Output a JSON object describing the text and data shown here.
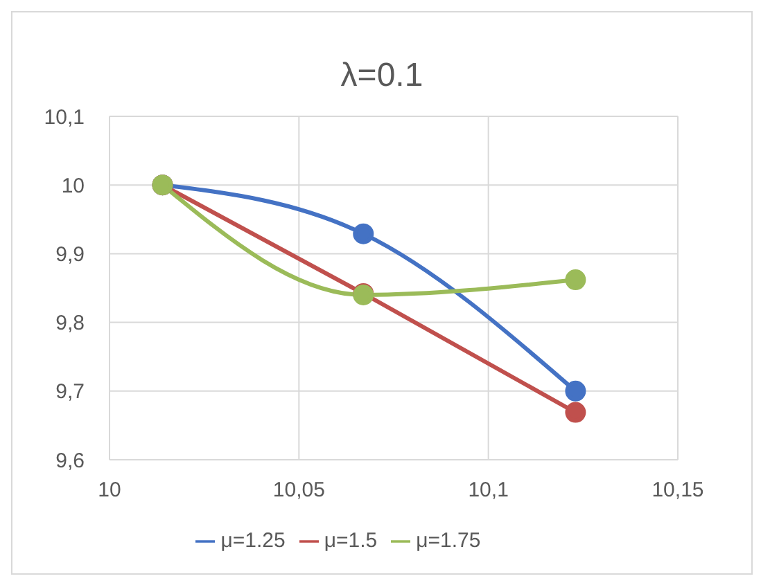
{
  "chart_data": {
    "type": "line",
    "title": "λ=0.1",
    "x": [
      10.014,
      10.067,
      10.123
    ],
    "series": [
      {
        "name": "μ=1.25",
        "color": "#4472c4",
        "values": [
          10.0,
          9.929,
          9.7
        ]
      },
      {
        "name": "μ=1.5",
        "color": "#c0504d",
        "values": [
          10.0,
          9.842,
          9.669
        ]
      },
      {
        "name": "μ=1.75",
        "color": "#9bbb59",
        "values": [
          10.0,
          9.84,
          9.862
        ]
      }
    ],
    "xlim": [
      10,
      10.15
    ],
    "xticks": [
      10,
      {
        "value": 10.05,
        "label": "10,05"
      },
      {
        "value": 10.1,
        "label": "10,1"
      },
      {
        "value": 10.15,
        "label": "10,15"
      }
    ],
    "ylim": [
      9.6,
      10.1
    ],
    "yticks": [
      {
        "value": 9.6,
        "label": "9,6"
      },
      {
        "value": 9.7,
        "label": "9,7"
      },
      {
        "value": 9.8,
        "label": "9,8"
      },
      {
        "value": 9.9,
        "label": "9,9"
      },
      10,
      {
        "value": 10.1,
        "label": "10,1"
      }
    ],
    "grid": true,
    "legend": "bottom",
    "marker": "circle",
    "line_style": "solid"
  }
}
